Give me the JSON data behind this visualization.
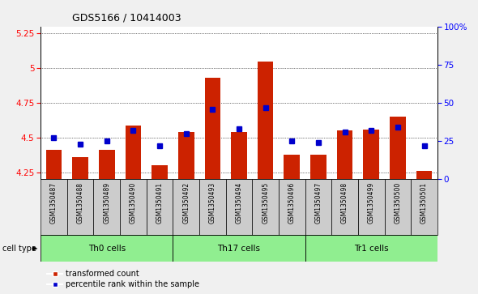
{
  "title": "GDS5166 / 10414003",
  "samples": [
    "GSM1350487",
    "GSM1350488",
    "GSM1350489",
    "GSM1350490",
    "GSM1350491",
    "GSM1350492",
    "GSM1350493",
    "GSM1350494",
    "GSM1350495",
    "GSM1350496",
    "GSM1350497",
    "GSM1350498",
    "GSM1350499",
    "GSM1350500",
    "GSM1350501"
  ],
  "transformed_count": [
    4.41,
    4.36,
    4.41,
    4.59,
    4.3,
    4.54,
    4.93,
    4.54,
    5.05,
    4.38,
    4.38,
    4.55,
    4.56,
    4.65,
    4.26
  ],
  "percentile_rank": [
    27,
    23,
    25,
    32,
    22,
    30,
    46,
    33,
    47,
    25,
    24,
    31,
    32,
    34,
    22
  ],
  "cell_types": [
    {
      "label": "Th0 cells",
      "start": 0,
      "end": 5,
      "color": "#90ee90"
    },
    {
      "label": "Th17 cells",
      "start": 5,
      "end": 10,
      "color": "#90ee90"
    },
    {
      "label": "Tr1 cells",
      "start": 10,
      "end": 15,
      "color": "#90ee90"
    }
  ],
  "ylim_left": [
    4.2,
    5.3
  ],
  "ylim_right": [
    0,
    100
  ],
  "yticks_left": [
    4.25,
    4.5,
    4.75,
    5.0,
    5.25
  ],
  "yticks_right": [
    0,
    25,
    50,
    75,
    100
  ],
  "bar_color": "#cc2200",
  "dot_color": "#0000cc",
  "baseline": 4.2,
  "bar_width": 0.6,
  "sample_bg_color": "#cccccc",
  "fig_bg_color": "#f0f0f0",
  "plot_bg_color": "#ffffff"
}
